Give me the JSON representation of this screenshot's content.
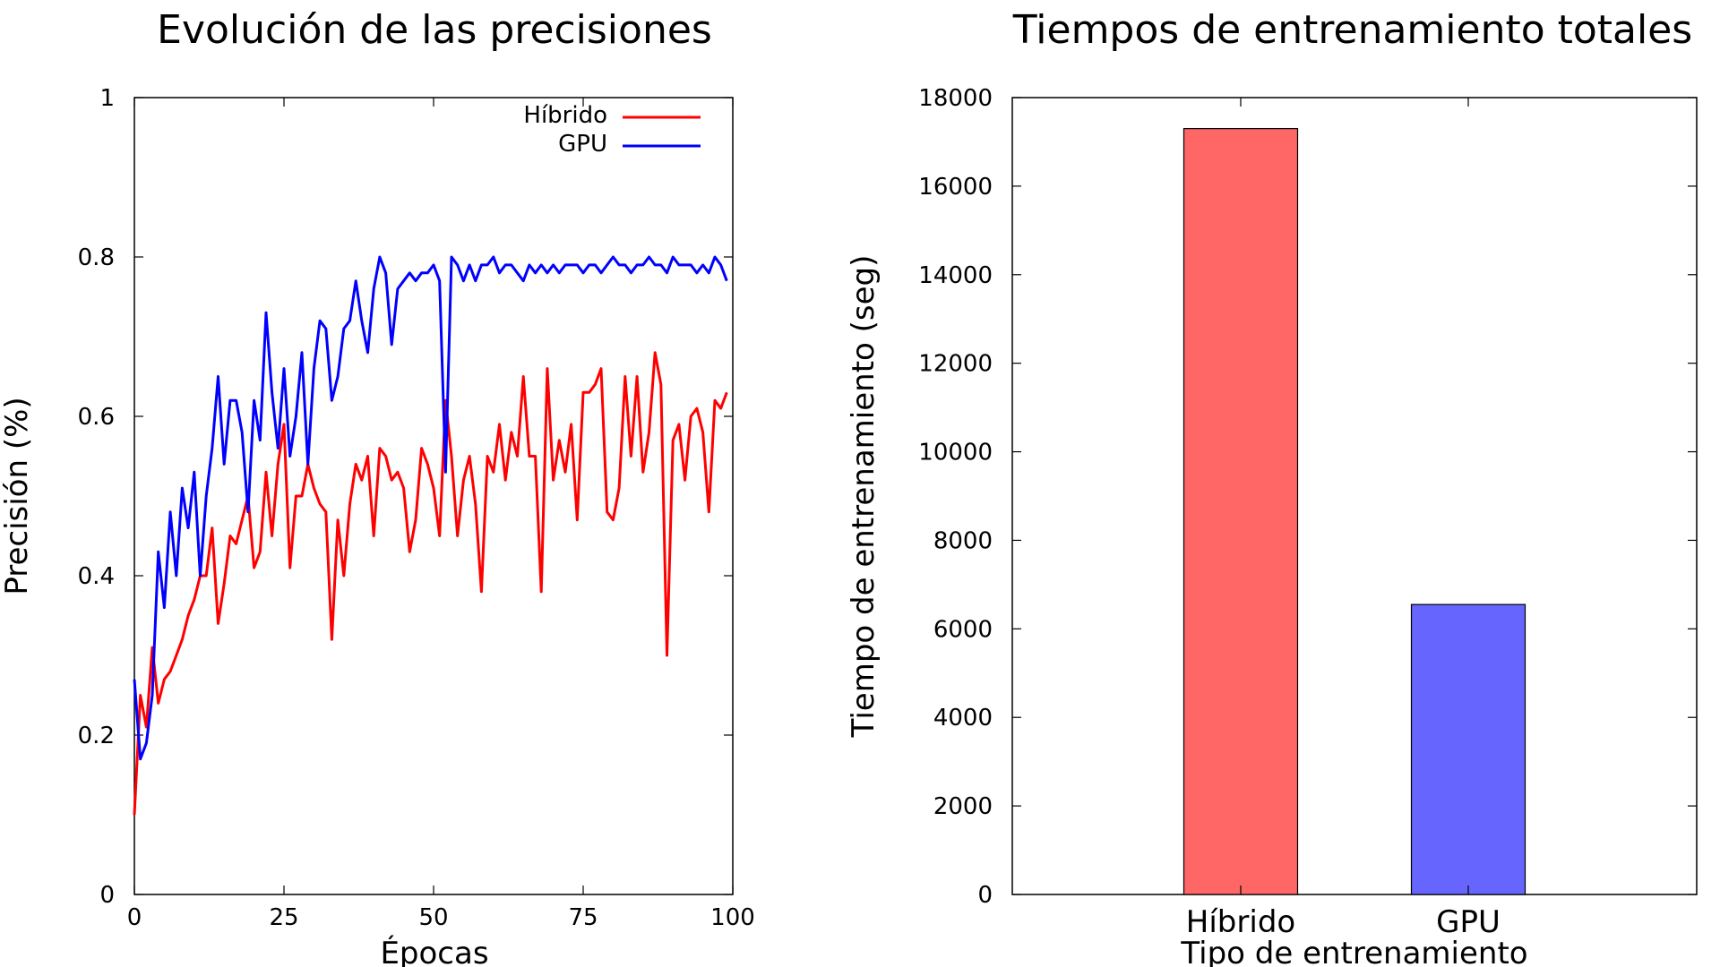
{
  "chart_data": [
    {
      "type": "line",
      "title": "Evolución de las precisiones",
      "xlabel": "Épocas",
      "ylabel": "Precisión (%)",
      "xlim": [
        0,
        100
      ],
      "ylim": [
        0,
        1
      ],
      "xticks": [
        "0",
        "25",
        "50",
        "75",
        "100"
      ],
      "yticks": [
        "0",
        "0.2",
        "0.4",
        "0.6",
        "0.8",
        "1"
      ],
      "grid": false,
      "legend_position": "top-right",
      "series": [
        {
          "name": "Híbrido",
          "color": "#ff0000",
          "x": [
            0,
            1,
            2,
            3,
            4,
            5,
            6,
            7,
            8,
            9,
            10,
            11,
            12,
            13,
            14,
            15,
            16,
            17,
            18,
            19,
            20,
            21,
            22,
            23,
            24,
            25,
            26,
            27,
            28,
            29,
            30,
            31,
            32,
            33,
            34,
            35,
            36,
            37,
            38,
            39,
            40,
            41,
            42,
            43,
            44,
            45,
            46,
            47,
            48,
            49,
            50,
            51,
            52,
            53,
            54,
            55,
            56,
            57,
            58,
            59,
            60,
            61,
            62,
            63,
            64,
            65,
            66,
            67,
            68,
            69,
            70,
            71,
            72,
            73,
            74,
            75,
            76,
            77,
            78,
            79,
            80,
            81,
            82,
            83,
            84,
            85,
            86,
            87,
            88,
            89,
            90,
            91,
            92,
            93,
            94,
            95,
            96,
            97,
            98,
            99
          ],
          "values": [
            0.1,
            0.25,
            0.21,
            0.31,
            0.24,
            0.27,
            0.28,
            0.3,
            0.32,
            0.35,
            0.37,
            0.4,
            0.4,
            0.46,
            0.34,
            0.39,
            0.45,
            0.44,
            0.47,
            0.5,
            0.41,
            0.43,
            0.53,
            0.45,
            0.54,
            0.59,
            0.41,
            0.5,
            0.5,
            0.54,
            0.51,
            0.49,
            0.48,
            0.32,
            0.47,
            0.4,
            0.49,
            0.54,
            0.52,
            0.55,
            0.45,
            0.56,
            0.55,
            0.52,
            0.53,
            0.51,
            0.43,
            0.47,
            0.56,
            0.54,
            0.51,
            0.45,
            0.62,
            0.55,
            0.45,
            0.52,
            0.55,
            0.49,
            0.38,
            0.55,
            0.53,
            0.59,
            0.52,
            0.58,
            0.55,
            0.65,
            0.55,
            0.55,
            0.38,
            0.66,
            0.52,
            0.57,
            0.53,
            0.59,
            0.47,
            0.63,
            0.63,
            0.64,
            0.66,
            0.48,
            0.47,
            0.51,
            0.65,
            0.55,
            0.65,
            0.53,
            0.58,
            0.68,
            0.64,
            0.3,
            0.57,
            0.59,
            0.52,
            0.6,
            0.61,
            0.58,
            0.48,
            0.62,
            0.61,
            0.63
          ]
        },
        {
          "name": "GPU",
          "color": "#0000ff",
          "x": [
            0,
            1,
            2,
            3,
            4,
            5,
            6,
            7,
            8,
            9,
            10,
            11,
            12,
            13,
            14,
            15,
            16,
            17,
            18,
            19,
            20,
            21,
            22,
            23,
            24,
            25,
            26,
            27,
            28,
            29,
            30,
            31,
            32,
            33,
            34,
            35,
            36,
            37,
            38,
            39,
            40,
            41,
            42,
            43,
            44,
            45,
            46,
            47,
            48,
            49,
            50,
            51,
            52,
            53,
            54,
            55,
            56,
            57,
            58,
            59,
            60,
            61,
            62,
            63,
            64,
            65,
            66,
            67,
            68,
            69,
            70,
            71,
            72,
            73,
            74,
            75,
            76,
            77,
            78,
            79,
            80,
            81,
            82,
            83,
            84,
            85,
            86,
            87,
            88,
            89,
            90,
            91,
            92,
            93,
            94,
            95,
            96,
            97,
            98,
            99
          ],
          "values": [
            0.27,
            0.17,
            0.19,
            0.25,
            0.43,
            0.36,
            0.48,
            0.4,
            0.51,
            0.46,
            0.53,
            0.4,
            0.5,
            0.56,
            0.65,
            0.54,
            0.62,
            0.62,
            0.58,
            0.48,
            0.62,
            0.57,
            0.73,
            0.63,
            0.56,
            0.66,
            0.55,
            0.6,
            0.68,
            0.54,
            0.66,
            0.72,
            0.71,
            0.62,
            0.65,
            0.71,
            0.72,
            0.77,
            0.72,
            0.68,
            0.76,
            0.8,
            0.78,
            0.69,
            0.76,
            0.77,
            0.78,
            0.77,
            0.78,
            0.78,
            0.79,
            0.77,
            0.53,
            0.8,
            0.79,
            0.77,
            0.79,
            0.77,
            0.79,
            0.79,
            0.8,
            0.78,
            0.79,
            0.79,
            0.78,
            0.77,
            0.79,
            0.78,
            0.79,
            0.78,
            0.79,
            0.78,
            0.79,
            0.79,
            0.79,
            0.78,
            0.79,
            0.79,
            0.78,
            0.79,
            0.8,
            0.79,
            0.79,
            0.78,
            0.79,
            0.79,
            0.8,
            0.79,
            0.79,
            0.78,
            0.8,
            0.79,
            0.79,
            0.79,
            0.78,
            0.79,
            0.78,
            0.8,
            0.79,
            0.77
          ]
        }
      ]
    },
    {
      "type": "bar",
      "title": "Tiempos de entrenamiento totales",
      "xlabel": "Tipo de entrenamiento",
      "ylabel": "Tiempo de entrenamiento (seg)",
      "categories": [
        "Híbrido",
        "GPU"
      ],
      "values": [
        17300,
        6550
      ],
      "colors": [
        "#ff6666",
        "#6666ff"
      ],
      "ylim": [
        0,
        18000
      ],
      "yticks": [
        "0",
        "2000",
        "4000",
        "6000",
        "8000",
        "10000",
        "12000",
        "14000",
        "16000",
        "18000"
      ],
      "grid": false
    }
  ]
}
